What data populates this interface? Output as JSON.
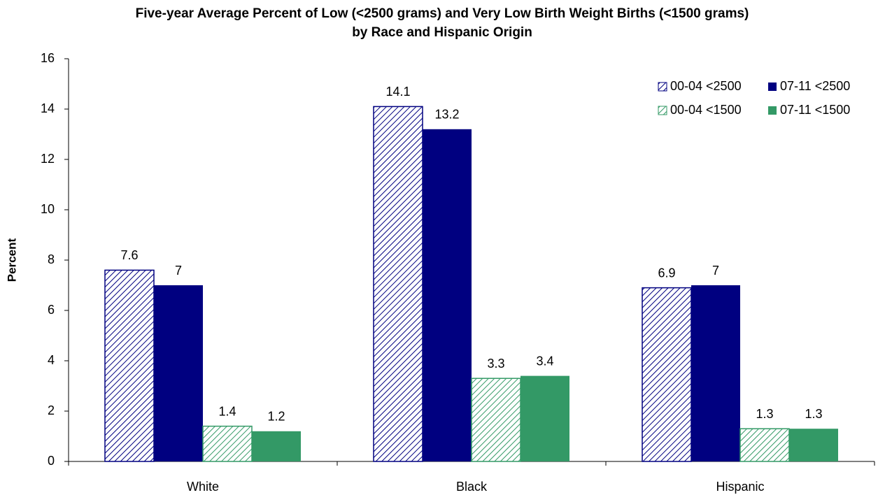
{
  "chart_data": {
    "type": "bar",
    "title": "Five-year Average Percent of Low (<2500 grams) and Very Low Birth Weight Births (<1500 grams)",
    "subtitle": "by Race and Hispanic Origin",
    "y_label": "Percent",
    "categories": [
      "White",
      "Black",
      "Hispanic"
    ],
    "series": [
      {
        "name": "00-04 <2500",
        "color": "#000080",
        "pattern": "hatch",
        "values": [
          7.6,
          14.1,
          6.9
        ]
      },
      {
        "name": "07-11 <2500",
        "color": "#000080",
        "pattern": "solid",
        "values": [
          7,
          13.2,
          7
        ]
      },
      {
        "name": "00-04 <1500",
        "color": "#339966",
        "pattern": "hatch",
        "values": [
          1.4,
          3.3,
          1.3
        ]
      },
      {
        "name": "07-11 <1500",
        "color": "#339966",
        "pattern": "solid",
        "values": [
          1.2,
          3.4,
          1.3
        ]
      }
    ],
    "ylim": [
      0,
      16
    ],
    "yticks": [
      0,
      2,
      4,
      6,
      8,
      10,
      12,
      14,
      16
    ],
    "legend": "top-right",
    "grid": false
  }
}
